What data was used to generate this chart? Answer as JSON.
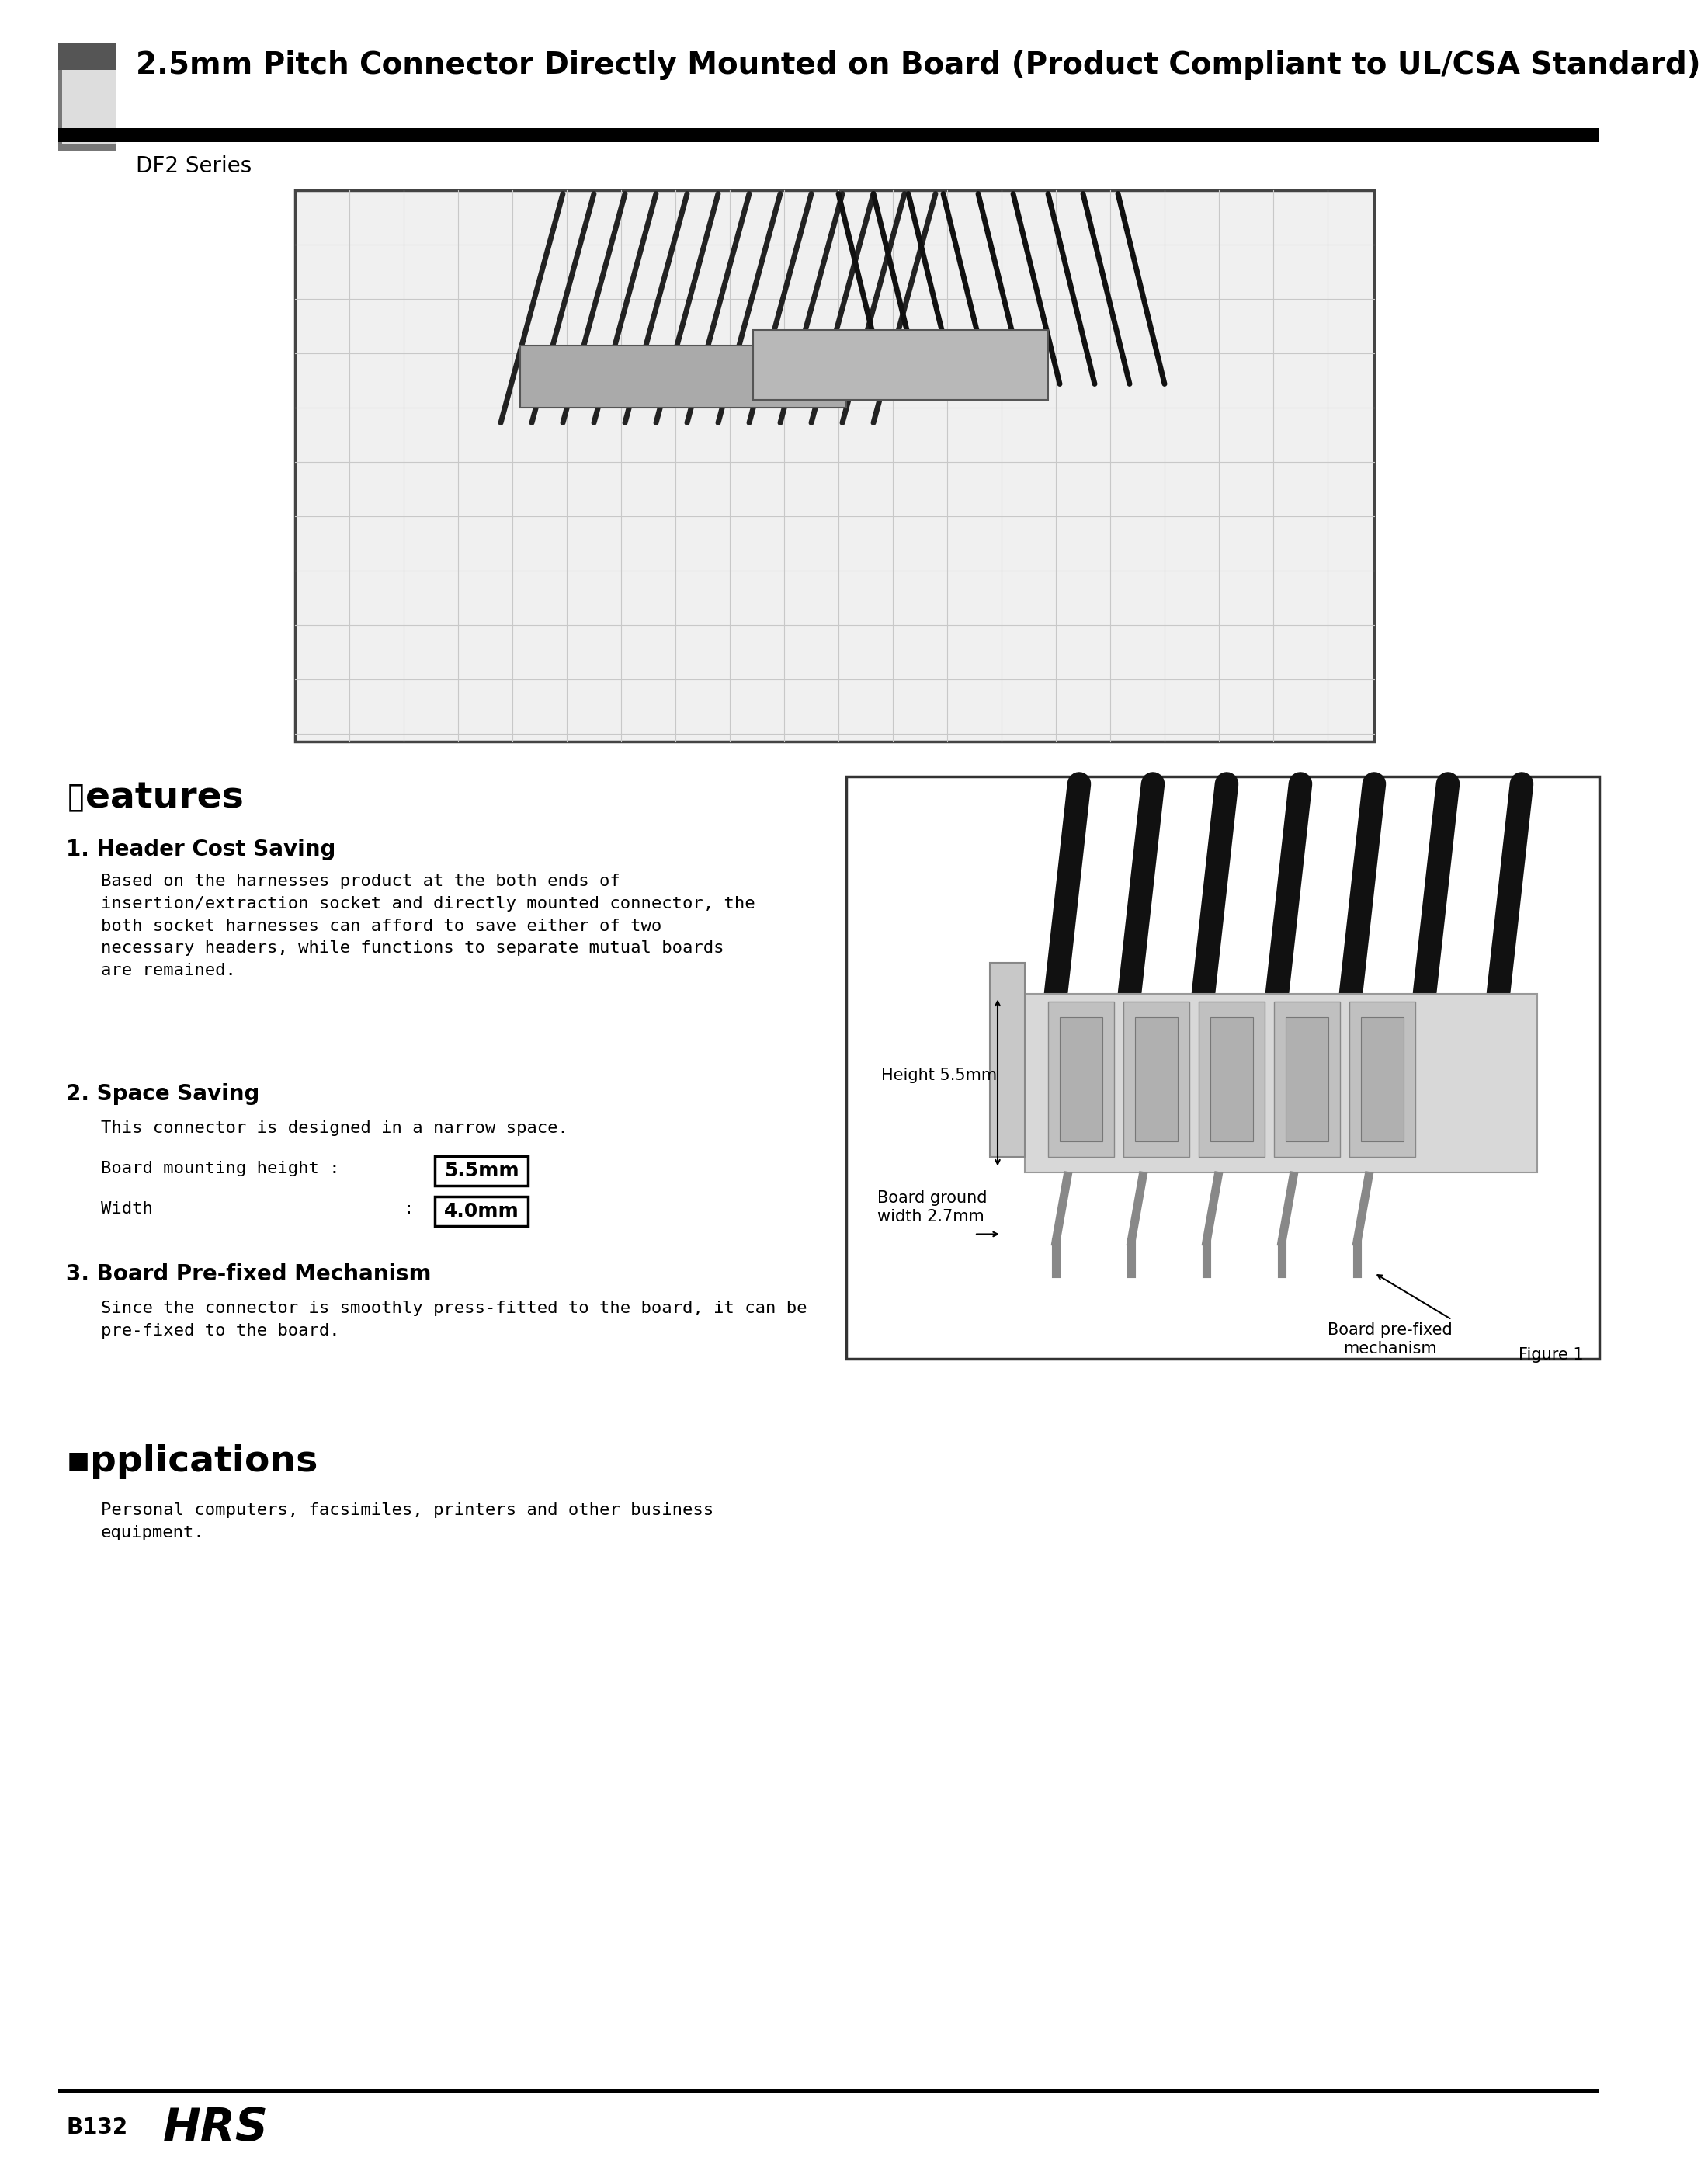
{
  "title": "2.5mm Pitch Connector Directly Mounted on Board (Product Compliant to UL/CSA Standard)",
  "series_name": "DF2 Series",
  "features_title": "▯eatures",
  "section1_title": "1. Header Cost Saving",
  "section1_body": "Based on the harnesses product at the both ends of\ninsertion/extraction socket and directly mounted connector, the\nboth socket harnesses can afford to save either of two\nnecessary headers, while functions to separate mutual boards\nare remained.",
  "section2_title": "2. Space Saving",
  "section2_line1": "This connector is designed in a narrow space.",
  "section2_label_height": "Board mounting height :",
  "section2_label_width": "Width",
  "section2_colon2": ":",
  "section2_boxed_55": "5.5mm",
  "section2_boxed_40": "4.0mm",
  "section3_title": "3. Board Pre-fixed Mechanism",
  "section3_body": "Since the connector is smoothly press-fitted to the board, it can be\npre-fixed to the board.",
  "applications_title": "▪pplications",
  "applications_body": "Personal computers, facsimiles, printers and other business\nequipment.",
  "figure_caption": "Figure 1",
  "fig1_label1": "Height 5.5mm",
  "fig1_label2": "Board ground\nwidth 2.7mm",
  "fig1_label3": "Board pre-fixed\nmechanism",
  "footer_page": "B132",
  "footer_logo": "HRS",
  "bg_color": "#ffffff",
  "text_color": "#000000",
  "header_bar_height": 22,
  "header_icon_dark_color": "#666666",
  "header_icon_light_color": "#cccccc",
  "footer_line_color": "#000000"
}
